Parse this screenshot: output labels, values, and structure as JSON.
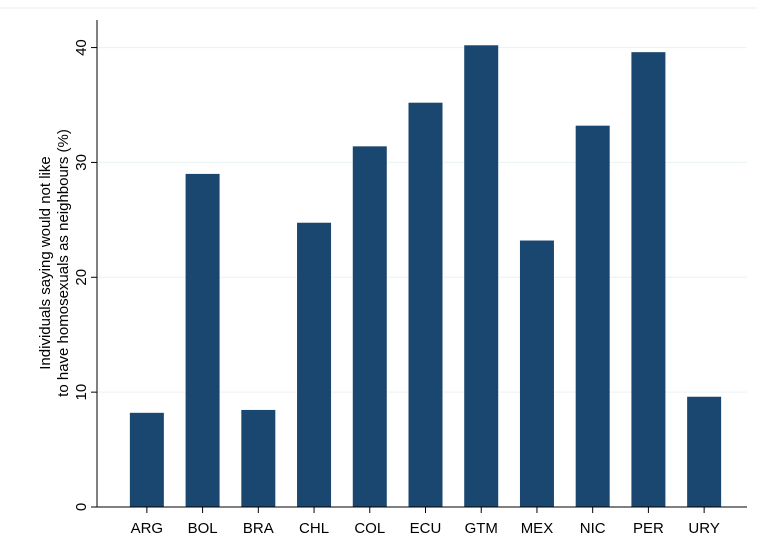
{
  "chart_data": {
    "type": "bar",
    "y_label": [
      "Individuals saying would not like",
      "to have homosexuals as neighbours (%)"
    ],
    "categories": [
      "ARG",
      "BOL",
      "BRA",
      "CHL",
      "COL",
      "ECU",
      "GTM",
      "MEX",
      "NIC",
      "PER",
      "URY"
    ],
    "values": [
      8.2,
      29.0,
      8.45,
      24.75,
      31.4,
      35.2,
      40.2,
      23.2,
      33.2,
      39.6,
      9.6
    ],
    "color": "#1a476f",
    "ylim": [
      0,
      42.4
    ],
    "yticks": [
      0,
      10,
      20,
      30,
      40
    ],
    "grid": true
  }
}
